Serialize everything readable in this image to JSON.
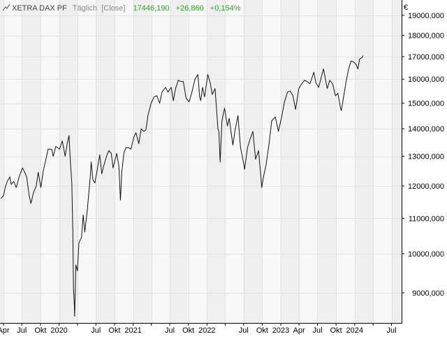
{
  "header": {
    "name": "XETRA DAX PF",
    "interval": "Täglich",
    "mode": "[Close]",
    "last": "17446,190",
    "change": "+26,860",
    "change_pct": "+0,154%"
  },
  "colors": {
    "line": "#111111",
    "positive": "#2e9e2e",
    "header_text": "#444444",
    "band_light": "#f8f8f8",
    "band_dark": "#efefef",
    "grid": "#e2e2e2",
    "axis": "#000000"
  },
  "chart_data": {
    "type": "line",
    "title": "XETRA DAX PF",
    "currency": "€",
    "y_scale": "log",
    "ylim": [
      8300,
      19800
    ],
    "xlim": [
      "2019-03-15",
      "2024-08-20"
    ],
    "grid": true,
    "y_ticks": [
      {
        "value": 9000,
        "label": "9000,000"
      },
      {
        "value": 10000,
        "label": "10000,000"
      },
      {
        "value": 11000,
        "label": "11000,000"
      },
      {
        "value": 12000,
        "label": "12000,000"
      },
      {
        "value": 13000,
        "label": "13000,000"
      },
      {
        "value": 14000,
        "label": "14000,000"
      },
      {
        "value": 15000,
        "label": "15000,000"
      },
      {
        "value": 16000,
        "label": "16000,000"
      },
      {
        "value": 17000,
        "label": "17000,000"
      },
      {
        "value": 18000,
        "label": "18000,000"
      },
      {
        "value": 19000,
        "label": "19000,000"
      }
    ],
    "x_ticks": [
      {
        "date": "2019-04-01",
        "label": "Apr"
      },
      {
        "date": "2019-07-01",
        "label": "Jul"
      },
      {
        "date": "2019-10-01",
        "label": "Okt"
      },
      {
        "date": "2020-01-01",
        "label": "2020"
      },
      {
        "date": "2020-04-01",
        "label": "Apr"
      },
      {
        "date": "2020-07-01",
        "label": "Jul"
      },
      {
        "date": "2020-10-01",
        "label": "Okt"
      },
      {
        "date": "2021-01-01",
        "label": "2021"
      },
      {
        "date": "2021-04-01",
        "label": "Apr"
      },
      {
        "date": "2021-07-01",
        "label": "Jul"
      },
      {
        "date": "2021-10-01",
        "label": "Okt"
      },
      {
        "date": "2022-01-01",
        "label": "2022"
      },
      {
        "date": "2022-04-01",
        "label": "Apr"
      },
      {
        "date": "2022-07-01",
        "label": "Jul"
      },
      {
        "date": "2022-10-01",
        "label": "Okt"
      },
      {
        "date": "2023-01-01",
        "label": "2023"
      },
      {
        "date": "2023-04-01",
        "label": "Apr"
      },
      {
        "date": "2023-07-01",
        "label": "Jul"
      },
      {
        "date": "2023-10-01",
        "label": "Okt"
      },
      {
        "date": "2024-01-01",
        "label": "2024"
      },
      {
        "date": "2024-04-01",
        "label": "Apr"
      },
      {
        "date": "2024-07-01",
        "label": "Jul"
      }
    ],
    "hidden_tick_labels": [
      "2020-04-01",
      "2021-04-01",
      "2022-04-01",
      "2024-04-01"
    ],
    "series": [
      {
        "points": [
          [
            "2019-03-20",
            11600
          ],
          [
            "2019-04-02",
            11700
          ],
          [
            "2019-04-10",
            11950
          ],
          [
            "2019-04-20",
            12150
          ],
          [
            "2019-05-03",
            12300
          ],
          [
            "2019-05-10",
            12050
          ],
          [
            "2019-05-22",
            12150
          ],
          [
            "2019-06-03",
            11950
          ],
          [
            "2019-06-20",
            12350
          ],
          [
            "2019-07-04",
            12600
          ],
          [
            "2019-07-15",
            12450
          ],
          [
            "2019-07-25",
            12300
          ],
          [
            "2019-08-06",
            11700
          ],
          [
            "2019-08-15",
            11450
          ],
          [
            "2019-08-28",
            11800
          ],
          [
            "2019-09-10",
            12000
          ],
          [
            "2019-09-20",
            12450
          ],
          [
            "2019-10-03",
            11950
          ],
          [
            "2019-10-15",
            12500
          ],
          [
            "2019-10-28",
            12900
          ],
          [
            "2019-11-08",
            13250
          ],
          [
            "2019-11-25",
            13250
          ],
          [
            "2019-12-03",
            13000
          ],
          [
            "2019-12-16",
            13350
          ],
          [
            "2020-01-03",
            13250
          ],
          [
            "2020-01-17",
            13550
          ],
          [
            "2020-01-31",
            13000
          ],
          [
            "2020-02-10",
            13450
          ],
          [
            "2020-02-19",
            13750
          ],
          [
            "2020-02-26",
            12800
          ],
          [
            "2020-03-04",
            12100
          ],
          [
            "2020-03-09",
            10600
          ],
          [
            "2020-03-12",
            9100
          ],
          [
            "2020-03-16",
            8750
          ],
          [
            "2020-03-18",
            8450
          ],
          [
            "2020-03-24",
            9700
          ],
          [
            "2020-04-01",
            9550
          ],
          [
            "2020-04-08",
            10300
          ],
          [
            "2020-04-21",
            10450
          ],
          [
            "2020-04-29",
            11100
          ],
          [
            "2020-05-07",
            10600
          ],
          [
            "2020-05-19",
            11200
          ],
          [
            "2020-06-03",
            12300
          ],
          [
            "2020-06-08",
            12800
          ],
          [
            "2020-06-16",
            12200
          ],
          [
            "2020-06-26",
            12100
          ],
          [
            "2020-07-08",
            12550
          ],
          [
            "2020-07-20",
            13050
          ],
          [
            "2020-07-30",
            12400
          ],
          [
            "2020-08-10",
            12700
          ],
          [
            "2020-08-25",
            13050
          ],
          [
            "2020-09-03",
            13200
          ],
          [
            "2020-09-15",
            13100
          ],
          [
            "2020-09-24",
            12600
          ],
          [
            "2020-10-12",
            13100
          ],
          [
            "2020-10-23",
            12650
          ],
          [
            "2020-10-30",
            11550
          ],
          [
            "2020-11-06",
            12450
          ],
          [
            "2020-11-16",
            13100
          ],
          [
            "2020-11-26",
            13300
          ],
          [
            "2020-12-10",
            13300
          ],
          [
            "2020-12-21",
            13250
          ],
          [
            "2021-01-05",
            13700
          ],
          [
            "2021-01-15",
            13850
          ],
          [
            "2021-01-29",
            13450
          ],
          [
            "2021-02-10",
            14000
          ],
          [
            "2021-02-22",
            13900
          ],
          [
            "2021-03-05",
            13950
          ],
          [
            "2021-03-15",
            14500
          ],
          [
            "2021-03-31",
            15000
          ],
          [
            "2021-04-15",
            15250
          ],
          [
            "2021-04-28",
            15300
          ],
          [
            "2021-05-12",
            15000
          ],
          [
            "2021-05-24",
            15450
          ],
          [
            "2021-06-10",
            15650
          ],
          [
            "2021-06-22",
            15450
          ],
          [
            "2021-07-08",
            15650
          ],
          [
            "2021-07-19",
            15100
          ],
          [
            "2021-07-30",
            15600
          ],
          [
            "2021-08-12",
            15950
          ],
          [
            "2021-08-25",
            15900
          ],
          [
            "2021-09-06",
            15900
          ],
          [
            "2021-09-20",
            15200
          ],
          [
            "2021-10-05",
            15050
          ],
          [
            "2021-10-20",
            15500
          ],
          [
            "2021-11-03",
            16000
          ],
          [
            "2021-11-17",
            16200
          ],
          [
            "2021-11-26",
            15250
          ],
          [
            "2021-12-01",
            15100
          ],
          [
            "2021-12-10",
            15650
          ],
          [
            "2021-12-20",
            15250
          ],
          [
            "2022-01-05",
            16200
          ],
          [
            "2022-01-18",
            15800
          ],
          [
            "2022-01-27",
            15350
          ],
          [
            "2022-02-10",
            15600
          ],
          [
            "2022-02-24",
            14000
          ],
          [
            "2022-03-01",
            13900
          ],
          [
            "2022-03-07",
            12800
          ],
          [
            "2022-03-16",
            14300
          ],
          [
            "2022-03-29",
            14800
          ],
          [
            "2022-04-12",
            14100
          ],
          [
            "2022-04-21",
            14400
          ],
          [
            "2022-05-09",
            13400
          ],
          [
            "2022-05-20",
            13950
          ],
          [
            "2022-06-03",
            14500
          ],
          [
            "2022-06-16",
            13300
          ],
          [
            "2022-06-30",
            12800
          ],
          [
            "2022-07-06",
            12550
          ],
          [
            "2022-07-20",
            13300
          ],
          [
            "2022-08-04",
            13650
          ],
          [
            "2022-08-16",
            13900
          ],
          [
            "2022-08-29",
            12900
          ],
          [
            "2022-09-13",
            13200
          ],
          [
            "2022-09-29",
            11950
          ],
          [
            "2022-10-07",
            12300
          ],
          [
            "2022-10-20",
            12700
          ],
          [
            "2022-11-04",
            13450
          ],
          [
            "2022-11-17",
            14300
          ],
          [
            "2022-12-05",
            14450
          ],
          [
            "2022-12-20",
            13900
          ],
          [
            "2023-01-05",
            14450
          ],
          [
            "2023-01-19",
            15050
          ],
          [
            "2023-02-03",
            15450
          ],
          [
            "2023-02-16",
            15500
          ],
          [
            "2023-03-02",
            15300
          ],
          [
            "2023-03-15",
            14750
          ],
          [
            "2023-03-31",
            15600
          ],
          [
            "2023-04-14",
            15800
          ],
          [
            "2023-04-28",
            15950
          ],
          [
            "2023-05-11",
            15900
          ],
          [
            "2023-05-25",
            15800
          ],
          [
            "2023-06-13",
            16300
          ],
          [
            "2023-06-23",
            15850
          ],
          [
            "2023-07-07",
            15650
          ],
          [
            "2023-07-31",
            16450
          ],
          [
            "2023-08-18",
            15600
          ],
          [
            "2023-08-31",
            15950
          ],
          [
            "2023-09-14",
            15800
          ],
          [
            "2023-09-28",
            15300
          ],
          [
            "2023-10-10",
            15400
          ],
          [
            "2023-10-23",
            14800
          ],
          [
            "2023-10-27",
            14700
          ],
          [
            "2023-11-08",
            15300
          ],
          [
            "2023-11-20",
            15900
          ],
          [
            "2023-12-01",
            16400
          ],
          [
            "2023-12-14",
            16800
          ],
          [
            "2023-12-28",
            16750
          ],
          [
            "2024-01-08",
            16650
          ],
          [
            "2024-01-17",
            16450
          ],
          [
            "2024-01-26",
            16900
          ],
          [
            "2024-02-06",
            16950
          ],
          [
            "2024-02-12",
            17050
          ]
        ]
      }
    ]
  }
}
